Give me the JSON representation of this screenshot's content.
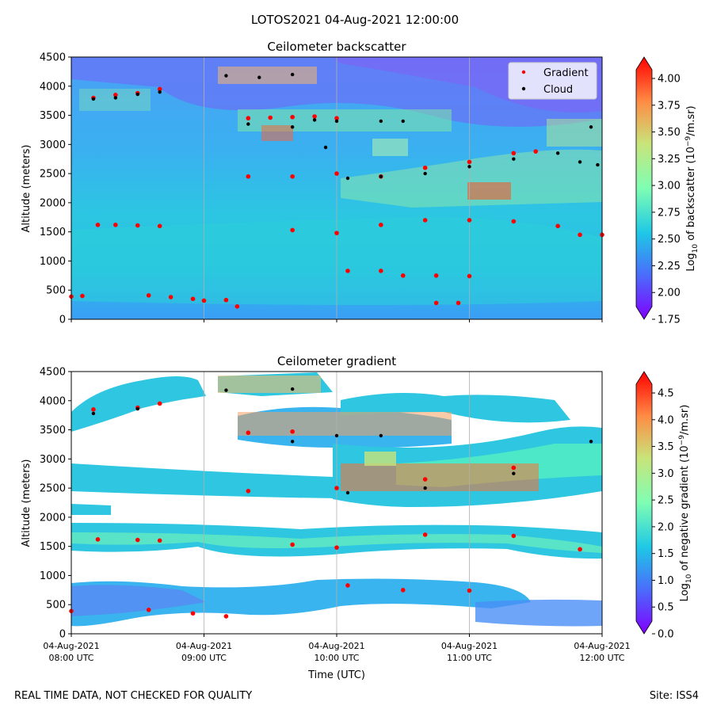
{
  "suptitle": "LOTOS2021 04-Aug-2021 12:00:00",
  "footer": {
    "left": "REAL TIME DATA, NOT CHECKED FOR QUALITY",
    "right": "Site: ISS4"
  },
  "colors": {
    "gradient_marker": "#ff0000",
    "cloud_marker": "#000000",
    "background_field": "#1ec8e6",
    "grid": "#b0b0b0"
  },
  "chart_data": [
    {
      "type": "heatmap",
      "title": "Ceilometer backscatter",
      "ylabel": "Altitude (meters)",
      "xlabel": "",
      "ylim": [
        0,
        4500
      ],
      "yticks": [
        "0",
        "500",
        "1000",
        "1500",
        "2000",
        "2500",
        "3000",
        "3500",
        "4000",
        "4500"
      ],
      "xticks_labels": [],
      "grid": "vertical lines at hourly x ticks",
      "colormap": "rainbow",
      "colorbar": {
        "label_prefix": "Log",
        "label_sub": "10",
        "label_mid": " of backscatter (10",
        "label_sup": "−9",
        "label_suffix": "/m.sr)",
        "min": 1.75,
        "max": 4.2,
        "ticks": [
          "1.75",
          "2.00",
          "2.25",
          "2.50",
          "2.75",
          "3.00",
          "3.25",
          "3.50",
          "3.75",
          "4.00"
        ]
      },
      "legend": {
        "placement": "top-right",
        "entries": [
          {
            "label": "Gradient",
            "color": "#ff0000"
          },
          {
            "label": "Cloud",
            "color": "#000000"
          }
        ]
      },
      "series": [
        {
          "name": "Gradient",
          "points": [
            [
              "08:00",
              390
            ],
            [
              "08:05",
              400
            ],
            [
              "08:12",
              1620
            ],
            [
              "08:20",
              1620
            ],
            [
              "08:30",
              1610
            ],
            [
              "08:40",
              1600
            ],
            [
              "08:10",
              3800
            ],
            [
              "08:20",
              3850
            ],
            [
              "08:30",
              3880
            ],
            [
              "08:40",
              3950
            ],
            [
              "08:35",
              410
            ],
            [
              "08:45",
              380
            ],
            [
              "08:55",
              350
            ],
            [
              "09:00",
              320
            ],
            [
              "09:10",
              330
            ],
            [
              "09:15",
              220
            ],
            [
              "09:20",
              3450
            ],
            [
              "09:30",
              3460
            ],
            [
              "09:40",
              3470
            ],
            [
              "09:50",
              3480
            ],
            [
              "10:00",
              3450
            ],
            [
              "09:20",
              2450
            ],
            [
              "09:40",
              2450
            ],
            [
              "10:00",
              2500
            ],
            [
              "10:20",
              2450
            ],
            [
              "10:40",
              2600
            ],
            [
              "11:00",
              2700
            ],
            [
              "11:20",
              2850
            ],
            [
              "11:30",
              2880
            ],
            [
              "09:40",
              1530
            ],
            [
              "10:00",
              1480
            ],
            [
              "10:20",
              1620
            ],
            [
              "10:40",
              1700
            ],
            [
              "11:00",
              1700
            ],
            [
              "11:20",
              1680
            ],
            [
              "11:40",
              1600
            ],
            [
              "11:50",
              1450
            ],
            [
              "12:00",
              1450
            ],
            [
              "10:05",
              830
            ],
            [
              "10:20",
              830
            ],
            [
              "10:30",
              750
            ],
            [
              "10:45",
              750
            ],
            [
              "11:00",
              740
            ],
            [
              "10:45",
              280
            ],
            [
              "10:55",
              280
            ]
          ]
        },
        {
          "name": "Cloud",
          "points": [
            [
              "08:10",
              3780
            ],
            [
              "08:20",
              3800
            ],
            [
              "08:30",
              3860
            ],
            [
              "08:40",
              3900
            ],
            [
              "09:10",
              4180
            ],
            [
              "09:25",
              4150
            ],
            [
              "09:40",
              4200
            ],
            [
              "09:20",
              3350
            ],
            [
              "09:40",
              3300
            ],
            [
              "09:50",
              3420
            ],
            [
              "10:00",
              3400
            ],
            [
              "10:20",
              3400
            ],
            [
              "10:30",
              3400
            ],
            [
              "10:05",
              2420
            ],
            [
              "10:20",
              2450
            ],
            [
              "10:40",
              2500
            ],
            [
              "11:00",
              2620
            ],
            [
              "11:20",
              2750
            ],
            [
              "11:40",
              2850
            ],
            [
              "11:55",
              3300
            ],
            [
              "11:50",
              2700
            ],
            [
              "11:58",
              2650
            ],
            [
              "09:55",
              2950
            ]
          ]
        }
      ]
    },
    {
      "type": "heatmap",
      "title": "Ceilometer gradient",
      "ylabel": "Altitude (meters)",
      "xlabel": "Time (UTC)",
      "ylim": [
        0,
        4500
      ],
      "yticks": [
        "0",
        "500",
        "1000",
        "1500",
        "2000",
        "2500",
        "3000",
        "3500",
        "4000",
        "4500"
      ],
      "xticks_labels": [
        [
          "04-Aug-2021",
          "08:00 UTC"
        ],
        [
          "04-Aug-2021",
          "09:00 UTC"
        ],
        [
          "04-Aug-2021",
          "10:00 UTC"
        ],
        [
          "04-Aug-2021",
          "11:00 UTC"
        ],
        [
          "04-Aug-2021",
          "12:00 UTC"
        ]
      ],
      "grid": "vertical lines at hourly x ticks",
      "colormap": "rainbow",
      "colorbar": {
        "label_prefix": "Log",
        "label_sub": "10",
        "label_mid": " of negative gradient (10",
        "label_sup": "−9",
        "label_suffix": "/m.sr)",
        "min": 0.0,
        "max": 4.9,
        "ticks": [
          "0.0",
          "0.5",
          "1.0",
          "1.5",
          "2.0",
          "2.5",
          "3.0",
          "3.5",
          "4.0",
          "4.5"
        ]
      },
      "series": [
        {
          "name": "Gradient",
          "points": [
            [
              "08:00",
              390
            ],
            [
              "08:12",
              1620
            ],
            [
              "08:30",
              1610
            ],
            [
              "08:40",
              1600
            ],
            [
              "08:10",
              3850
            ],
            [
              "08:30",
              3880
            ],
            [
              "08:40",
              3950
            ],
            [
              "08:35",
              410
            ],
            [
              "08:55",
              350
            ],
            [
              "09:10",
              300
            ],
            [
              "09:20",
              3450
            ],
            [
              "09:40",
              3470
            ],
            [
              "09:20",
              2450
            ],
            [
              "10:00",
              2500
            ],
            [
              "10:40",
              2650
            ],
            [
              "11:20",
              2850
            ],
            [
              "09:40",
              1530
            ],
            [
              "10:00",
              1480
            ],
            [
              "10:40",
              1700
            ],
            [
              "11:20",
              1680
            ],
            [
              "11:50",
              1450
            ],
            [
              "10:05",
              830
            ],
            [
              "10:30",
              750
            ],
            [
              "11:00",
              740
            ]
          ]
        },
        {
          "name": "Cloud",
          "points": [
            [
              "08:10",
              3780
            ],
            [
              "08:30",
              3860
            ],
            [
              "09:10",
              4180
            ],
            [
              "09:40",
              4200
            ],
            [
              "09:40",
              3300
            ],
            [
              "10:00",
              3400
            ],
            [
              "10:20",
              3400
            ],
            [
              "10:05",
              2420
            ],
            [
              "10:40",
              2500
            ],
            [
              "11:20",
              2750
            ],
            [
              "11:55",
              3300
            ]
          ]
        }
      ]
    }
  ]
}
